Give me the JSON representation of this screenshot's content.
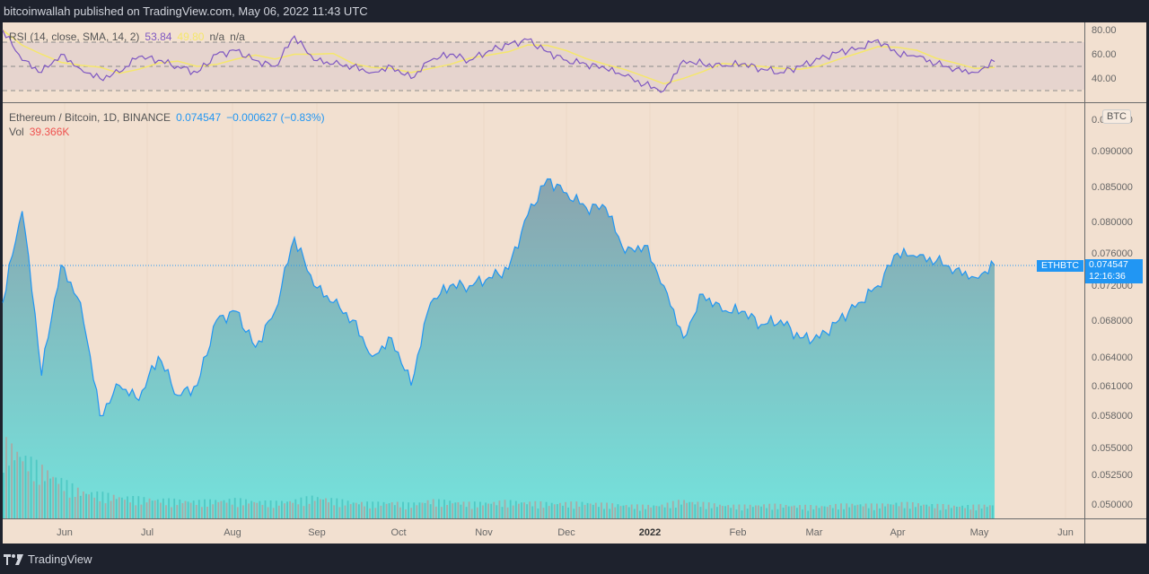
{
  "header": {
    "attribution": "bitcoinwallah published on TradingView.com, May 06, 2022 11:43 UTC"
  },
  "rsi": {
    "label": "RSI (14, close, SMA, 14, 2)",
    "value": "53.84",
    "sma_value": "49.80",
    "na1": "n/a",
    "na2": "n/a",
    "axis": [
      "80.00",
      "60.00",
      "40.00"
    ],
    "colors": {
      "rsi": "#7e57c2",
      "sma": "#f5e76b",
      "band": "#d8c8d8"
    }
  },
  "main": {
    "symbol_label": "Ethereum / Bitcoin, 1D, BINANCE",
    "last_price": "0.074547",
    "change": "−0.000627 (−0.83%)",
    "vol_label": "Vol",
    "vol_value": "39.366K",
    "currency_badge": "BTC",
    "symbol_tag": "ETHBTC",
    "price_tag": "0.074547",
    "countdown": "12:16:36",
    "colors": {
      "line": "#2196f3",
      "fill_top": "#8fb0b8",
      "fill_bottom": "#74e2dc",
      "background": "#f2e0d0"
    }
  },
  "price_axis": [
    "0.090000",
    "0.085000",
    "0.080000",
    "0.076000",
    "0.072000",
    "0.068000",
    "0.064000",
    "0.061000",
    "0.058000",
    "0.055000",
    "0.052500",
    "0.050000"
  ],
  "time_axis": [
    "Jun",
    "Jul",
    "Aug",
    "Sep",
    "Oct",
    "Nov",
    "Dec",
    "2022",
    "Feb",
    "Mar",
    "Apr",
    "May",
    "Jun"
  ],
  "footer": {
    "brand": "TradingView"
  },
  "chart_data": {
    "type": "area",
    "title": "Ethereum / Bitcoin, 1D, BINANCE",
    "xlabel": "",
    "ylabel": "BTC",
    "ylim": [
      0.0495,
      0.094
    ],
    "y_scale": "log",
    "x": [
      "2021-05-15",
      "2021-05-22",
      "2021-05-29",
      "2021-06-05",
      "2021-06-12",
      "2021-06-19",
      "2021-06-26",
      "2021-07-03",
      "2021-07-10",
      "2021-07-17",
      "2021-07-24",
      "2021-07-31",
      "2021-08-07",
      "2021-08-14",
      "2021-08-21",
      "2021-08-28",
      "2021-09-04",
      "2021-09-11",
      "2021-09-18",
      "2021-09-25",
      "2021-10-02",
      "2021-10-09",
      "2021-10-16",
      "2021-10-23",
      "2021-10-30",
      "2021-11-06",
      "2021-11-13",
      "2021-11-20",
      "2021-11-27",
      "2021-12-04",
      "2021-12-11",
      "2021-12-18",
      "2021-12-25",
      "2022-01-01",
      "2022-01-08",
      "2022-01-15",
      "2022-01-22",
      "2022-01-29",
      "2022-02-05",
      "2022-02-12",
      "2022-02-19",
      "2022-02-26",
      "2022-03-05",
      "2022-03-12",
      "2022-03-19",
      "2022-03-26",
      "2022-04-02",
      "2022-04-09",
      "2022-04-16",
      "2022-04-23",
      "2022-04-30",
      "2022-05-06"
    ],
    "series": [
      {
        "name": "ETHBTC close",
        "values": [
          0.07,
          0.0815,
          0.062,
          0.0745,
          0.07,
          0.058,
          0.061,
          0.0595,
          0.064,
          0.06,
          0.061,
          0.068,
          0.069,
          0.065,
          0.069,
          0.078,
          0.072,
          0.07,
          0.068,
          0.064,
          0.066,
          0.061,
          0.07,
          0.072,
          0.072,
          0.073,
          0.074,
          0.081,
          0.086,
          0.084,
          0.082,
          0.082,
          0.076,
          0.077,
          0.072,
          0.066,
          0.071,
          0.069,
          0.069,
          0.0675,
          0.068,
          0.066,
          0.066,
          0.068,
          0.07,
          0.072,
          0.076,
          0.0755,
          0.075,
          0.074,
          0.073,
          0.0745
        ]
      },
      {
        "name": "RSI(14)",
        "values": [
          80,
          55,
          45,
          60,
          48,
          40,
          45,
          58,
          55,
          50,
          45,
          60,
          63,
          55,
          50,
          75,
          55,
          52,
          50,
          45,
          50,
          40,
          55,
          60,
          55,
          63,
          68,
          72,
          62,
          55,
          52,
          48,
          42,
          35,
          30,
          55,
          52,
          50,
          52,
          48,
          45,
          50,
          56,
          62,
          65,
          72,
          60,
          58,
          52,
          48,
          45,
          54
        ]
      },
      {
        "name": "Volume",
        "values": [
          170,
          140,
          110,
          85,
          60,
          55,
          48,
          45,
          42,
          40,
          38,
          40,
          42,
          38,
          36,
          40,
          48,
          42,
          36,
          34,
          36,
          32,
          40,
          38,
          34,
          35,
          38,
          36,
          34,
          34,
          35,
          32,
          30,
          28,
          30,
          40,
          34,
          30,
          28,
          30,
          30,
          28,
          27,
          30,
          32,
          30,
          34,
          33,
          30,
          28,
          28,
          30
        ]
      }
    ],
    "current_price": 0.074547,
    "rsi_levels": [
      70,
      50,
      30
    ],
    "legend_position": "top-left"
  }
}
